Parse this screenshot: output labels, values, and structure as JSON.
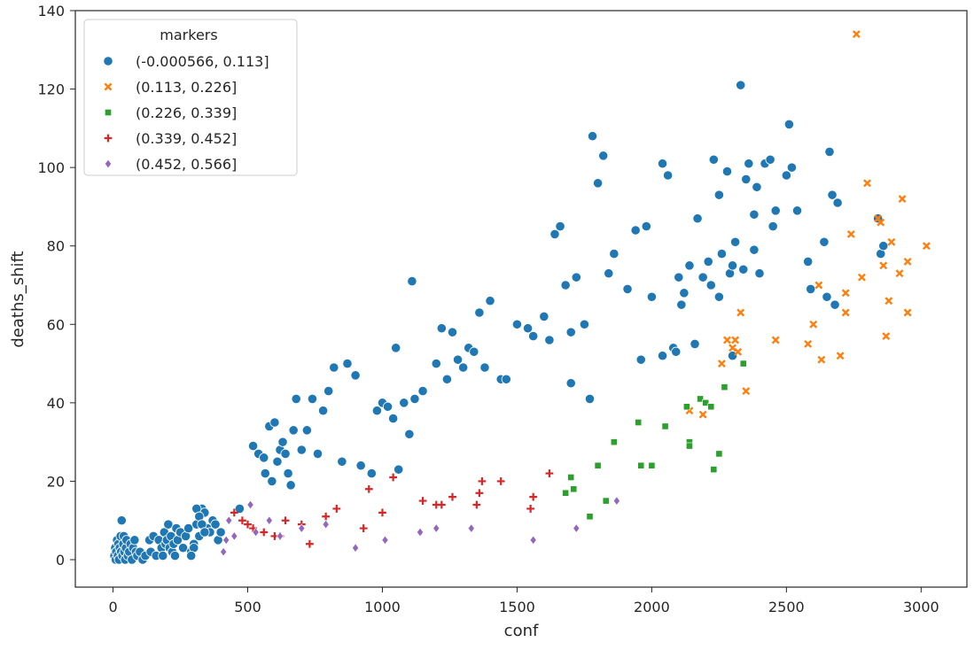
{
  "chart_data": {
    "type": "scatter",
    "xlabel": "conf",
    "ylabel": "deaths_shift",
    "xlim": [
      -140,
      3170
    ],
    "ylim": [
      -7,
      140
    ],
    "xticks": [
      0,
      500,
      1000,
      1500,
      2000,
      2500,
      3000
    ],
    "yticks": [
      0,
      20,
      40,
      60,
      80,
      100,
      120,
      140
    ],
    "legend": {
      "title": "markers",
      "position": "top-left"
    },
    "series": [
      {
        "name": "(-0.000566, 0.113]",
        "color": "#1f77b4",
        "marker": "circle",
        "points": [
          [
            5,
            1
          ],
          [
            8,
            3
          ],
          [
            10,
            0
          ],
          [
            12,
            2
          ],
          [
            15,
            5
          ],
          [
            18,
            1
          ],
          [
            20,
            4
          ],
          [
            22,
            0
          ],
          [
            25,
            3
          ],
          [
            28,
            6
          ],
          [
            30,
            2
          ],
          [
            32,
            10
          ],
          [
            35,
            1
          ],
          [
            38,
            4
          ],
          [
            40,
            6
          ],
          [
            42,
            2
          ],
          [
            45,
            0
          ],
          [
            48,
            3
          ],
          [
            50,
            5
          ],
          [
            55,
            1
          ],
          [
            60,
            2
          ],
          [
            65,
            4
          ],
          [
            70,
            0
          ],
          [
            75,
            3
          ],
          [
            80,
            5
          ],
          [
            85,
            2
          ],
          [
            90,
            1
          ],
          [
            100,
            2
          ],
          [
            110,
            0
          ],
          [
            120,
            1
          ],
          [
            135,
            5
          ],
          [
            140,
            2
          ],
          [
            150,
            6
          ],
          [
            160,
            1
          ],
          [
            170,
            5
          ],
          [
            180,
            3
          ],
          [
            185,
            1
          ],
          [
            190,
            7
          ],
          [
            195,
            4
          ],
          [
            200,
            5
          ],
          [
            205,
            9
          ],
          [
            210,
            3
          ],
          [
            215,
            6
          ],
          [
            220,
            2
          ],
          [
            225,
            4
          ],
          [
            230,
            1
          ],
          [
            235,
            8
          ],
          [
            240,
            5
          ],
          [
            250,
            7
          ],
          [
            260,
            3
          ],
          [
            270,
            6
          ],
          [
            280,
            8
          ],
          [
            290,
            2
          ],
          [
            300,
            4
          ],
          [
            310,
            9
          ],
          [
            320,
            6
          ],
          [
            330,
            13
          ],
          [
            340,
            12
          ],
          [
            350,
            8
          ],
          [
            360,
            7
          ],
          [
            370,
            10
          ],
          [
            380,
            9
          ],
          [
            390,
            5
          ],
          [
            400,
            7
          ],
          [
            310,
            13
          ],
          [
            320,
            11
          ],
          [
            330,
            9
          ],
          [
            340,
            7
          ],
          [
            300,
            3
          ],
          [
            290,
            1
          ],
          [
            470,
            13
          ],
          [
            520,
            29
          ],
          [
            540,
            27
          ],
          [
            560,
            26
          ],
          [
            565,
            22
          ],
          [
            580,
            34
          ],
          [
            590,
            20
          ],
          [
            600,
            35
          ],
          [
            610,
            25
          ],
          [
            620,
            28
          ],
          [
            630,
            30
          ],
          [
            640,
            27
          ],
          [
            650,
            22
          ],
          [
            660,
            19
          ],
          [
            670,
            33
          ],
          [
            680,
            41
          ],
          [
            700,
            28
          ],
          [
            720,
            33
          ],
          [
            740,
            41
          ],
          [
            760,
            27
          ],
          [
            780,
            38
          ],
          [
            800,
            43
          ],
          [
            820,
            49
          ],
          [
            850,
            25
          ],
          [
            870,
            50
          ],
          [
            900,
            47
          ],
          [
            920,
            24
          ],
          [
            960,
            22
          ],
          [
            980,
            38
          ],
          [
            1000,
            40
          ],
          [
            1020,
            39
          ],
          [
            1040,
            36
          ],
          [
            1050,
            54
          ],
          [
            1060,
            23
          ],
          [
            1080,
            40
          ],
          [
            1100,
            32
          ],
          [
            1110,
            71
          ],
          [
            1120,
            41
          ],
          [
            1150,
            43
          ],
          [
            1200,
            50
          ],
          [
            1220,
            59
          ],
          [
            1240,
            46
          ],
          [
            1260,
            58
          ],
          [
            1280,
            51
          ],
          [
            1300,
            49
          ],
          [
            1320,
            54
          ],
          [
            1340,
            53
          ],
          [
            1360,
            63
          ],
          [
            1380,
            49
          ],
          [
            1400,
            66
          ],
          [
            1440,
            46
          ],
          [
            1460,
            46
          ],
          [
            1500,
            60
          ],
          [
            1540,
            59
          ],
          [
            1560,
            57
          ],
          [
            1600,
            62
          ],
          [
            1620,
            56
          ],
          [
            1640,
            83
          ],
          [
            1660,
            85
          ],
          [
            1680,
            70
          ],
          [
            1700,
            58
          ],
          [
            1720,
            72
          ],
          [
            1750,
            60
          ],
          [
            1770,
            41
          ],
          [
            1780,
            108
          ],
          [
            1800,
            96
          ],
          [
            1820,
            103
          ],
          [
            1860,
            78
          ],
          [
            1910,
            69
          ],
          [
            1940,
            84
          ],
          [
            1960,
            51
          ],
          [
            1980,
            85
          ],
          [
            2000,
            67
          ],
          [
            2040,
            52
          ],
          [
            2040,
            101
          ],
          [
            2060,
            98
          ],
          [
            2080,
            54
          ],
          [
            2090,
            53
          ],
          [
            2100,
            72
          ],
          [
            2110,
            65
          ],
          [
            2120,
            68
          ],
          [
            2140,
            75
          ],
          [
            2170,
            87
          ],
          [
            2190,
            72
          ],
          [
            2210,
            76
          ],
          [
            2220,
            70
          ],
          [
            2230,
            102
          ],
          [
            2250,
            67
          ],
          [
            2260,
            78
          ],
          [
            2280,
            99
          ],
          [
            2290,
            73
          ],
          [
            2300,
            75
          ],
          [
            2310,
            81
          ],
          [
            2330,
            121
          ],
          [
            2340,
            74
          ],
          [
            2350,
            97
          ],
          [
            2360,
            101
          ],
          [
            2380,
            79
          ],
          [
            2390,
            95
          ],
          [
            2400,
            73
          ],
          [
            2420,
            101
          ],
          [
            2440,
            102
          ],
          [
            2450,
            85
          ],
          [
            2460,
            89
          ],
          [
            2500,
            98
          ],
          [
            2510,
            111
          ],
          [
            2520,
            100
          ],
          [
            2540,
            89
          ],
          [
            2580,
            76
          ],
          [
            2650,
            67
          ],
          [
            2660,
            104
          ],
          [
            2670,
            93
          ],
          [
            2680,
            65
          ],
          [
            2690,
            91
          ],
          [
            2840,
            87
          ],
          [
            2850,
            78
          ],
          [
            2860,
            80
          ],
          [
            2300,
            52
          ],
          [
            1700,
            45
          ],
          [
            1840,
            73
          ],
          [
            2160,
            55
          ],
          [
            2590,
            69
          ],
          [
            2640,
            81
          ],
          [
            2250,
            93
          ],
          [
            2380,
            88
          ]
        ]
      },
      {
        "name": "(0.113, 0.226]",
        "color": "#ff7f0e",
        "marker": "x",
        "points": [
          [
            2140,
            38
          ],
          [
            2190,
            37
          ],
          [
            2260,
            50
          ],
          [
            2280,
            56
          ],
          [
            2300,
            54
          ],
          [
            2310,
            56
          ],
          [
            2320,
            53
          ],
          [
            2330,
            63
          ],
          [
            2350,
            43
          ],
          [
            2460,
            56
          ],
          [
            2580,
            55
          ],
          [
            2600,
            60
          ],
          [
            2620,
            70
          ],
          [
            2630,
            51
          ],
          [
            2700,
            52
          ],
          [
            2720,
            63
          ],
          [
            2740,
            83
          ],
          [
            2760,
            134
          ],
          [
            2780,
            72
          ],
          [
            2800,
            96
          ],
          [
            2840,
            87
          ],
          [
            2850,
            86
          ],
          [
            2860,
            75
          ],
          [
            2870,
            57
          ],
          [
            2880,
            66
          ],
          [
            2890,
            81
          ],
          [
            2920,
            73
          ],
          [
            2930,
            92
          ],
          [
            2950,
            63
          ],
          [
            2950,
            76
          ],
          [
            3020,
            80
          ],
          [
            2720,
            68
          ]
        ]
      },
      {
        "name": "(0.226, 0.339]",
        "color": "#2ca02c",
        "marker": "square",
        "points": [
          [
            1680,
            17
          ],
          [
            1700,
            21
          ],
          [
            1710,
            18
          ],
          [
            1770,
            11
          ],
          [
            1800,
            24
          ],
          [
            1830,
            15
          ],
          [
            1860,
            30
          ],
          [
            1950,
            35
          ],
          [
            1960,
            24
          ],
          [
            2000,
            24
          ],
          [
            2050,
            34
          ],
          [
            2130,
            39
          ],
          [
            2140,
            30
          ],
          [
            2140,
            29
          ],
          [
            2180,
            41
          ],
          [
            2200,
            40
          ],
          [
            2220,
            39
          ],
          [
            2230,
            23
          ],
          [
            2250,
            27
          ],
          [
            2270,
            44
          ],
          [
            2340,
            50
          ]
        ]
      },
      {
        "name": "(0.339, 0.452]",
        "color": "#d62728",
        "marker": "plus",
        "points": [
          [
            450,
            12
          ],
          [
            480,
            10
          ],
          [
            500,
            9
          ],
          [
            520,
            8
          ],
          [
            560,
            7
          ],
          [
            600,
            6
          ],
          [
            620,
            6
          ],
          [
            640,
            10
          ],
          [
            700,
            9
          ],
          [
            730,
            4
          ],
          [
            790,
            11
          ],
          [
            830,
            13
          ],
          [
            930,
            8
          ],
          [
            950,
            18
          ],
          [
            1000,
            12
          ],
          [
            1040,
            21
          ],
          [
            1150,
            15
          ],
          [
            1200,
            14
          ],
          [
            1220,
            14
          ],
          [
            1260,
            16
          ],
          [
            1350,
            14
          ],
          [
            1360,
            17
          ],
          [
            1370,
            20
          ],
          [
            1440,
            20
          ],
          [
            1550,
            13
          ],
          [
            1560,
            16
          ],
          [
            1620,
            22
          ]
        ]
      },
      {
        "name": "(0.452, 0.566]",
        "color": "#9467bd",
        "marker": "diamond",
        "points": [
          [
            410,
            2
          ],
          [
            420,
            5
          ],
          [
            430,
            10
          ],
          [
            450,
            6
          ],
          [
            510,
            14
          ],
          [
            530,
            7
          ],
          [
            580,
            10
          ],
          [
            620,
            6
          ],
          [
            700,
            8
          ],
          [
            790,
            9
          ],
          [
            900,
            3
          ],
          [
            1010,
            5
          ],
          [
            1140,
            7
          ],
          [
            1200,
            8
          ],
          [
            1330,
            8
          ],
          [
            1560,
            5
          ],
          [
            1720,
            8
          ],
          [
            1870,
            15
          ]
        ]
      }
    ]
  }
}
